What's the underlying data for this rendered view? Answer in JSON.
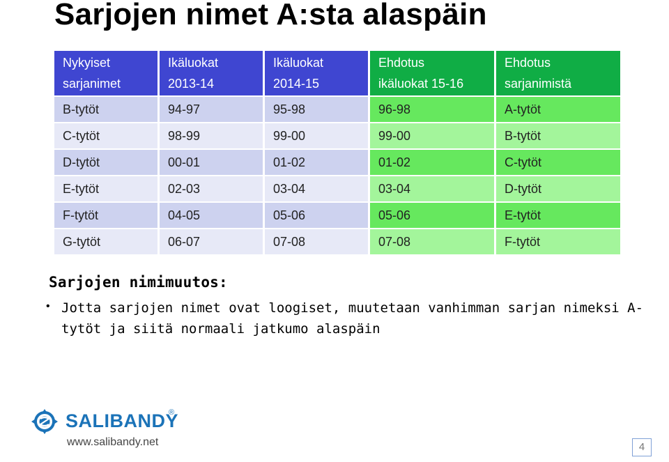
{
  "slide": {
    "title": "Sarjojen nimet A:sta alaspäin",
    "table": {
      "headers": [
        [
          "Nykyiset",
          "sarjanimet"
        ],
        [
          "Ikäluokat",
          "2013-14"
        ],
        [
          "Ikäluokat",
          "2014-15"
        ],
        [
          "Ehdotus",
          "ikäluokat 15-16"
        ],
        [
          "Ehdotus",
          "sarjanimistä"
        ]
      ],
      "rows": [
        [
          "B-tytöt",
          "94-97",
          "95-98",
          "96-98",
          "A-tytöt"
        ],
        [
          "C-tytöt",
          "98-99",
          "99-00",
          "99-00",
          "B-tytöt"
        ],
        [
          "D-tytöt",
          "00-01",
          "01-02",
          "01-02",
          "C-tytöt"
        ],
        [
          "E-tytöt",
          "02-03",
          "03-04",
          "03-04",
          "D-tytöt"
        ],
        [
          "F-tytöt",
          "04-05",
          "05-06",
          "05-06",
          "E-tytöt"
        ],
        [
          "G-tytöt",
          "06-07",
          "07-08",
          "07-08",
          "F-tytöt"
        ]
      ]
    },
    "subtitle": "Sarjojen nimimuutos:",
    "bullet": "Jotta sarjojen nimet ovat loogiset, muutetaan vanhimman sarjan nimeksi A-tytöt ja siitä normaali jatkumo alaspäin",
    "logo_text": "SALIBANDY",
    "url": "www.salibandy.net",
    "page_number": "4"
  },
  "colors": {
    "header_blue": "#3f46d1",
    "header_green": "#10ad45",
    "row_blue_dark": "#cdd2ef",
    "row_blue_light": "#e7e9f7",
    "row_green_dark": "#66e85e",
    "row_green_light": "#a3f59b",
    "logo_blue": "#1b73b8"
  },
  "icons": {
    "logo": "floorball-ball-icon",
    "bullet": "bullet-dot-icon"
  }
}
